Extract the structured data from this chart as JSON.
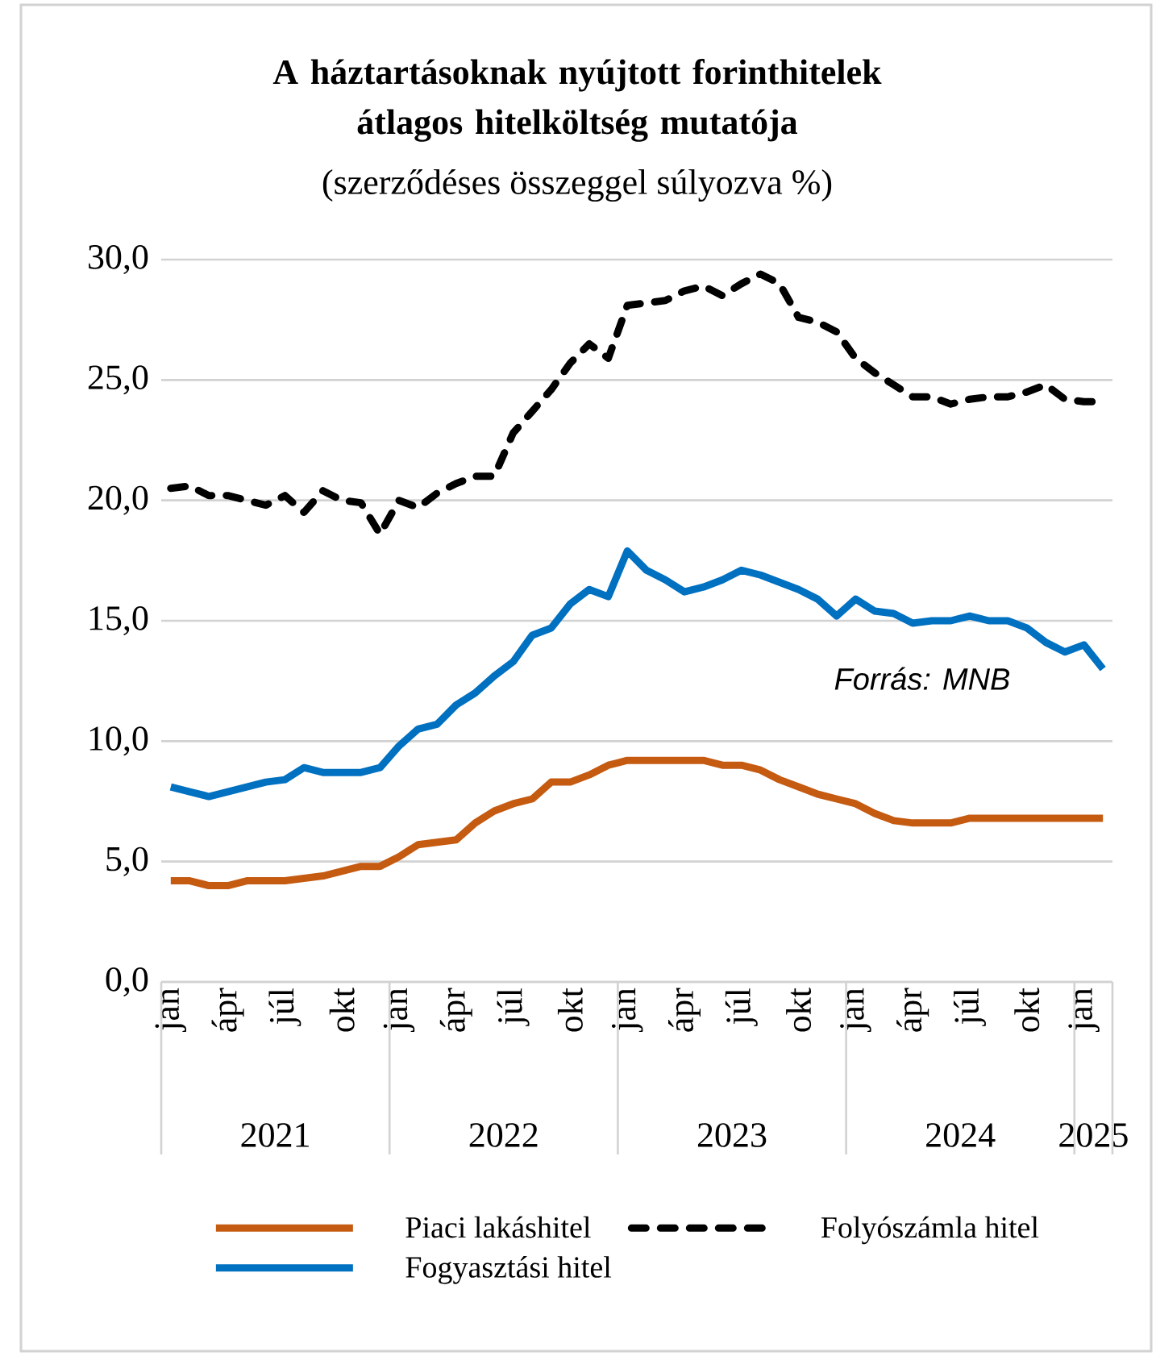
{
  "chart_data": {
    "type": "line",
    "title": "A háztartásoknak nyújtott forinthitelek átlagos hitelköltség mutatója",
    "subtitle": "(szerződéses összeggel súlyozva %)",
    "categories": [
      "jan",
      null,
      null,
      "ápr",
      null,
      null,
      "júl",
      null,
      null,
      "okt",
      null,
      null,
      "jan",
      null,
      null,
      "ápr",
      null,
      null,
      "júl",
      null,
      null,
      "okt",
      null,
      null,
      "jan",
      null,
      null,
      "ápr",
      null,
      null,
      "júl",
      null,
      null,
      "okt",
      null,
      null,
      "jan",
      null,
      null,
      "ápr",
      null,
      null,
      "júl",
      null,
      null,
      "okt",
      null,
      null,
      "jan",
      null
    ],
    "series": [
      {
        "name": "Piaci lakáshitel",
        "color": "#c55a11",
        "line_style": "solid",
        "values": [
          4.2,
          4.2,
          4.0,
          4.0,
          4.2,
          4.2,
          4.2,
          4.3,
          4.4,
          4.6,
          4.8,
          4.8,
          5.2,
          5.7,
          5.8,
          5.9,
          6.6,
          7.1,
          7.4,
          7.6,
          8.3,
          8.3,
          8.6,
          9.0,
          9.2,
          9.2,
          9.2,
          9.2,
          9.2,
          9.0,
          9.0,
          8.8,
          8.4,
          8.1,
          7.8,
          7.6,
          7.4,
          7.0,
          6.7,
          6.6,
          6.6,
          6.6,
          6.8,
          6.8,
          6.8,
          6.8,
          6.8,
          6.8,
          6.8,
          6.8
        ]
      },
      {
        "name": "Folyószámla hitel",
        "color": "#000000",
        "line_style": "dashed",
        "values": [
          20.5,
          20.6,
          20.2,
          20.2,
          20.0,
          19.8,
          20.2,
          19.5,
          20.4,
          20.0,
          19.9,
          18.6,
          20.0,
          19.7,
          20.3,
          20.7,
          21.0,
          21.0,
          22.8,
          23.7,
          24.6,
          25.7,
          26.5,
          25.9,
          28.1,
          28.2,
          28.3,
          28.7,
          28.9,
          28.5,
          29.0,
          29.4,
          29.0,
          27.6,
          27.4,
          27.0,
          25.9,
          25.3,
          24.8,
          24.3,
          24.3,
          24.0,
          24.2,
          24.3,
          24.3,
          24.5,
          24.8,
          24.2,
          24.1,
          24.1
        ]
      },
      {
        "name": "Fogyasztási hitel",
        "color": "#0070c0",
        "line_style": "solid",
        "values": [
          8.1,
          7.9,
          7.7,
          7.9,
          8.1,
          8.3,
          8.4,
          8.9,
          8.7,
          8.7,
          8.7,
          8.9,
          9.8,
          10.5,
          10.7,
          11.5,
          12.0,
          12.7,
          13.3,
          14.4,
          14.7,
          15.7,
          16.3,
          16.0,
          17.9,
          17.1,
          16.7,
          16.2,
          16.4,
          16.7,
          17.1,
          16.9,
          16.6,
          16.3,
          15.9,
          15.2,
          15.9,
          15.4,
          15.3,
          14.9,
          15.0,
          15.0,
          15.2,
          15.0,
          15.0,
          14.7,
          14.1,
          13.7,
          14.0,
          13.0
        ]
      }
    ],
    "ylim": [
      0,
      30
    ],
    "yticks": [
      {
        "value": 0,
        "label": "0,0"
      },
      {
        "value": 5,
        "label": "5,0"
      },
      {
        "value": 10,
        "label": "10,0"
      },
      {
        "value": 15,
        "label": "15,0"
      },
      {
        "value": 20,
        "label": "20,0"
      },
      {
        "value": 25,
        "label": "25,0"
      },
      {
        "value": 30,
        "label": "30,0"
      }
    ],
    "grid": "y",
    "legend": "bottom",
    "annotations": [
      "Forrás: MNB",
      "2021",
      "2022",
      "2023",
      "2024",
      "2025"
    ]
  }
}
